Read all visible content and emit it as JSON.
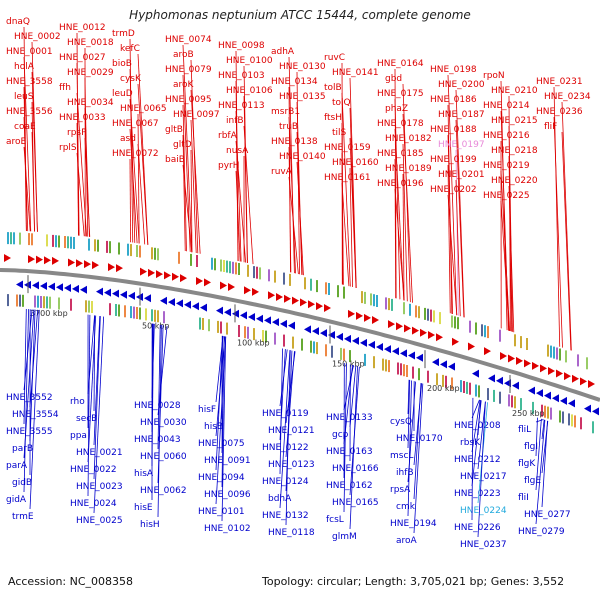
{
  "title": "Hyphomonas neptunium ATCC 15444, complete genome",
  "accession": "Accession: NC_008358",
  "summary": "Topology: circular; Length: 3,705,021 bp; Genes: 3,552",
  "colors": {
    "forward": "#dd0000",
    "reverse": "#0000cc",
    "highlight_forward": "#e889d8",
    "highlight_reverse": "#22aadd",
    "backbone": "#888888"
  },
  "ticks": [
    {
      "label": "3700 kbp"
    },
    {
      "label": "50 kbp"
    },
    {
      "label": "100 kbp"
    },
    {
      "label": "150 kbp"
    },
    {
      "label": "200 kbp"
    },
    {
      "label": "250 kbp"
    }
  ],
  "forward_labels": [
    "dnaQ",
    "HNE_0002",
    "HNE_0001",
    "holA",
    "HNE_3558",
    "leuS",
    "HNE_3556",
    "coaE",
    "aroE",
    "HNE_0012",
    "HNE_0018",
    "HNE_0027",
    "HNE_0029",
    "ffh",
    "HNE_0034",
    "HNE_0033",
    "rpsP",
    "rplS",
    "trmD",
    "kefC",
    "bioB",
    "cysK",
    "leuD",
    "HNE_0065",
    "HNE_0067",
    "asd",
    "HNE_0072",
    "HNE_0074",
    "aroB",
    "HNE_0079",
    "aroK",
    "HNE_0095",
    "HNE_0097",
    "gltB",
    "gltD",
    "baiB",
    "HNE_0098",
    "HNE_0100",
    "HNE_0103",
    "HNE_0106",
    "HNE_0113",
    "infB",
    "rbfA",
    "nusA",
    "pyrH",
    "adhA",
    "HNE_0130",
    "HNE_0134",
    "HNE_0135",
    "msrB1",
    "truB",
    "HNE_0138",
    "HNE_0140",
    "ruvA",
    "ruvC",
    "HNE_0141",
    "tolB",
    "tolQ",
    "ftsH",
    "tilS",
    "HNE_0159",
    "HNE_0160",
    "HNE_0161",
    "HNE_0164",
    "gbd",
    "HNE_0175",
    "phaZ",
    "HNE_0178",
    "HNE_0182",
    "HNE_0185",
    "HNE_0189",
    "HNE_0196",
    "HNE_0198",
    "HNE_0200",
    "HNE_0186",
    "HNE_0187",
    "HNE_0188",
    "HNE_0197",
    "HNE_0199",
    "HNE_0201",
    "HNE_0202",
    "rpoN",
    "HNE_0210",
    "HNE_0214",
    "HNE_0215",
    "HNE_0216",
    "HNE_0218",
    "HNE_0219",
    "HNE_0220",
    "HNE_0225",
    "HNE_0231",
    "HNE_0234",
    "HNE_0236",
    "fliF"
  ],
  "reverse_labels": [
    "HNE_3552",
    "HNE_3554",
    "HNE_3555",
    "parB",
    "parA",
    "gidB",
    "gidA",
    "trmE",
    "rho",
    "secB",
    "ppa",
    "HNE_0021",
    "HNE_0022",
    "HNE_0023",
    "HNE_0024",
    "HNE_0025",
    "HNE_0028",
    "HNE_0030",
    "HNE_0043",
    "HNE_0060",
    "hisA",
    "HNE_0062",
    "hisE",
    "hisH",
    "hisF",
    "hisB",
    "HNE_0075",
    "HNE_0091",
    "HNE_0094",
    "HNE_0096",
    "HNE_0101",
    "HNE_0102",
    "HNE_0119",
    "HNE_0121",
    "HNE_0122",
    "HNE_0123",
    "HNE_0124",
    "bdhA",
    "HNE_0132",
    "HNE_0118",
    "HNE_0133",
    "gcp",
    "HNE_0163",
    "HNE_0166",
    "HNE_0162",
    "HNE_0165",
    "fcsL",
    "glmM",
    "cysQ",
    "HNE_0170",
    "mscL",
    "ihfB",
    "rpsA",
    "cmk",
    "HNE_0194",
    "aroA",
    "HNE_0208",
    "rbsK",
    "HNE_0212",
    "HNE_0217",
    "HNE_0223",
    "HNE_0224",
    "HNE_0226",
    "HNE_0237",
    "fliL",
    "flgI",
    "flgK",
    "flgE",
    "fliI",
    "HNE_0277",
    "HNE_0279"
  ]
}
